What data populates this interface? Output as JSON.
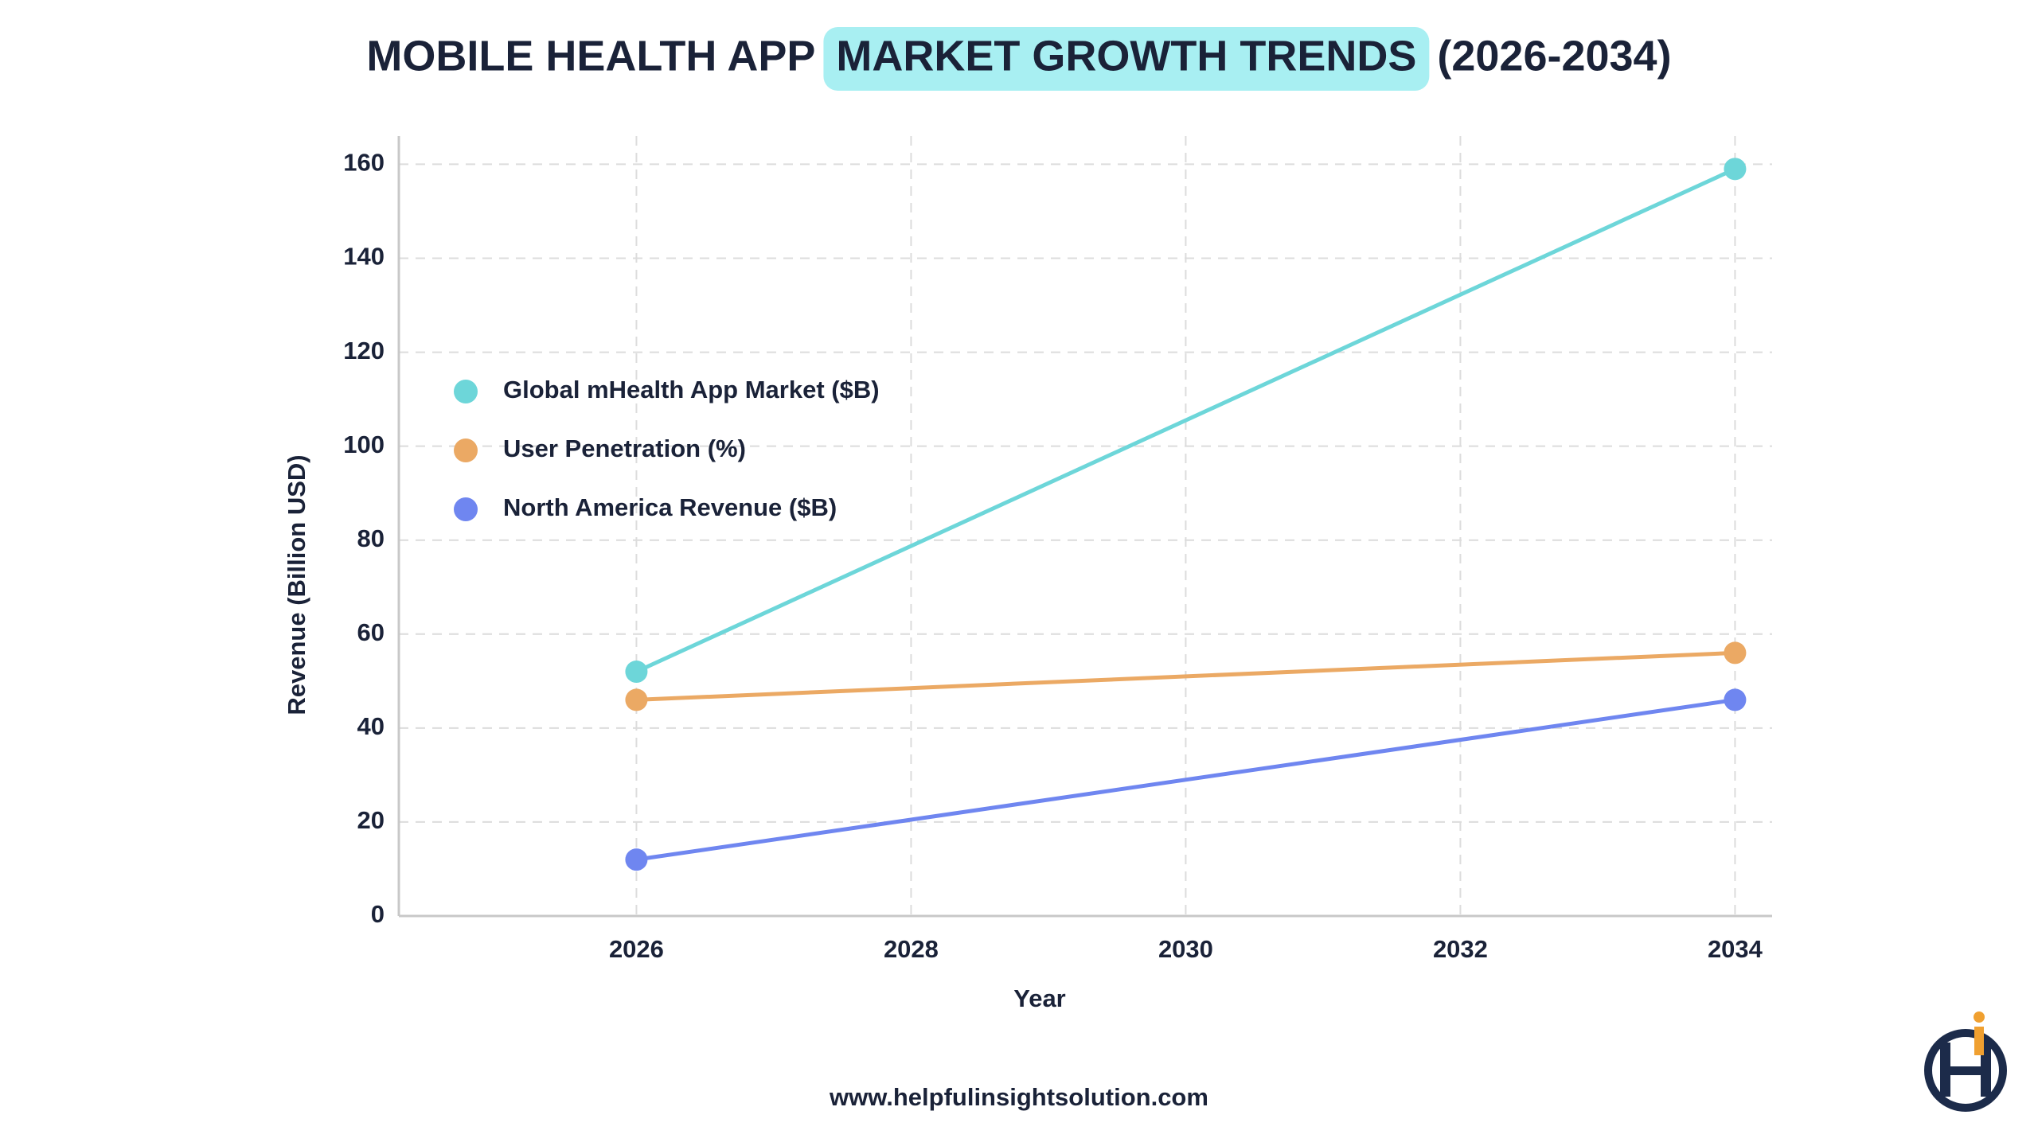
{
  "chart_data": {
    "type": "line",
    "title": [
      "MOBILE HEALTH APP",
      "MARKET GROWTH TRENDS",
      "(2026-2034)"
    ],
    "x_label": "Year",
    "y_label": "Revenue (Billion USD)",
    "x": [
      2026,
      2034
    ],
    "series": [
      {
        "name": "Global mHealth App Market ($B)",
        "color": "#6dd6d9",
        "values": [
          52,
          159
        ]
      },
      {
        "name": "User Penetration (%)",
        "color": "#eba964",
        "values": [
          46,
          56
        ]
      },
      {
        "name": "North America Revenue ($B)",
        "color": "#6f86f0",
        "values": [
          12,
          46
        ]
      }
    ],
    "xlim": [
      2024.27,
      2034.27
    ],
    "xticks": [
      2026,
      2028,
      2030,
      2032,
      2034
    ],
    "ylim": [
      0,
      166
    ],
    "yticks": [
      0,
      20,
      40,
      60,
      80,
      100,
      120,
      140,
      160
    ],
    "grid": true,
    "legend": "upper left",
    "footer": "www.helpfulinsightsolution.com"
  }
}
